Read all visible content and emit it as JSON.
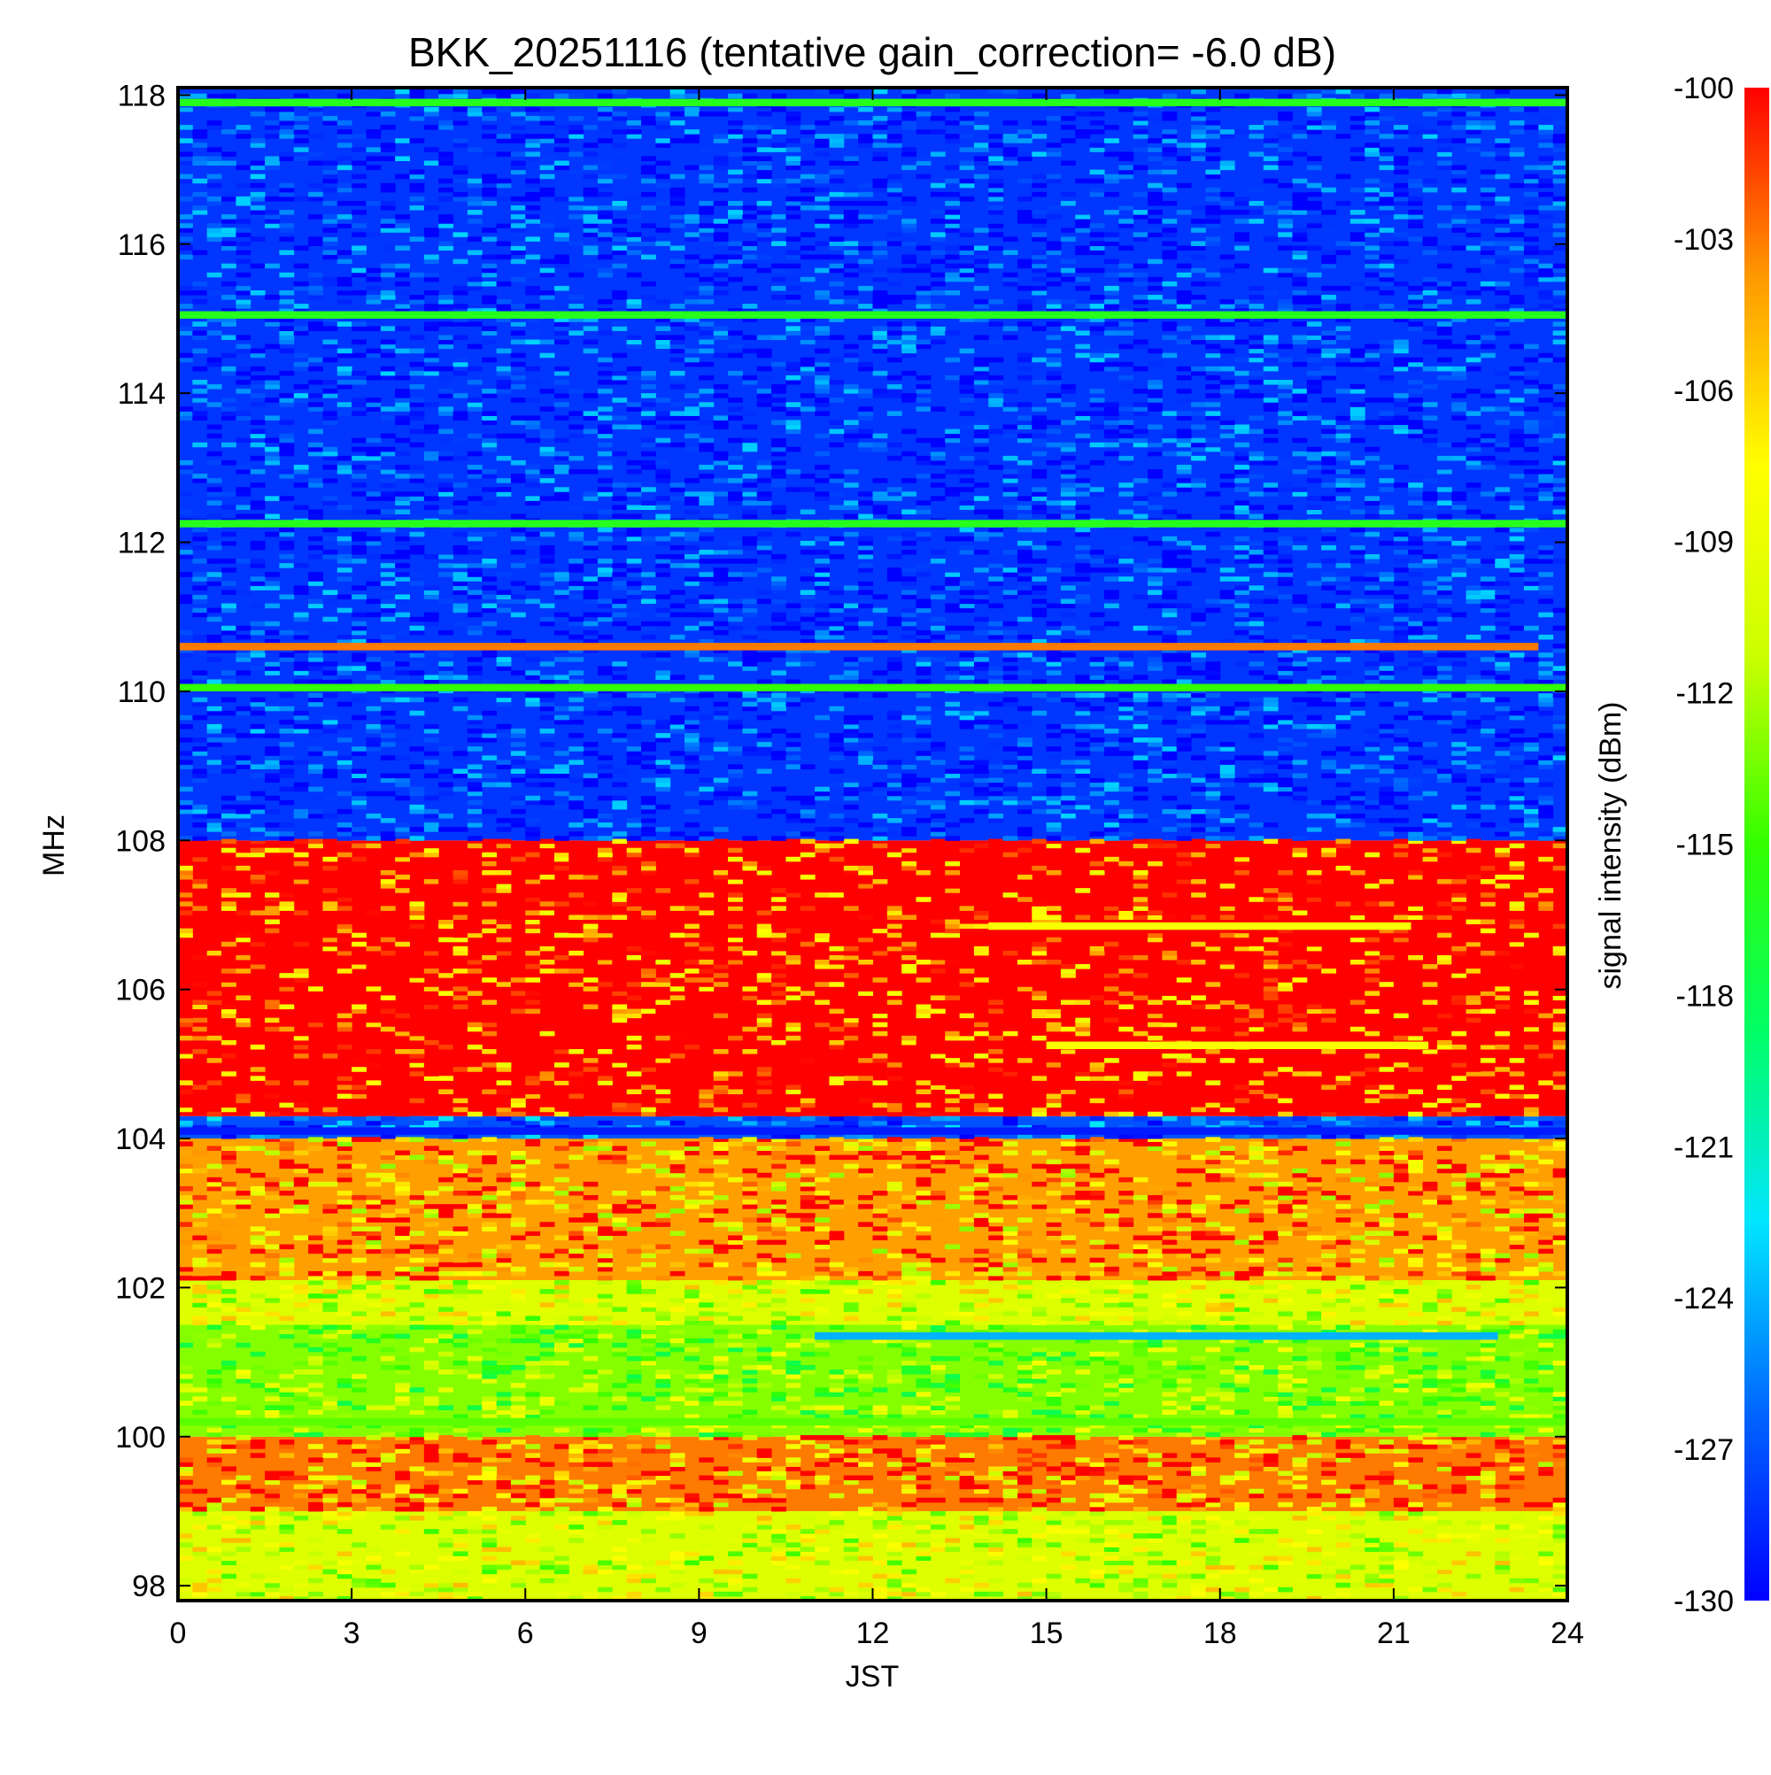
{
  "chart_data": {
    "type": "heatmap",
    "title": "BKK_20251116 (tentative gain_correction= -6.0 dB)",
    "xlabel": "JST",
    "ylabel": "MHz",
    "xlim": [
      0,
      24
    ],
    "ylim": [
      97.8,
      118.1
    ],
    "x_ticks": [
      "0",
      "3",
      "6",
      "9",
      "12",
      "15",
      "18",
      "21",
      "24"
    ],
    "x_tick_values": [
      0,
      3,
      6,
      9,
      12,
      15,
      18,
      21,
      24
    ],
    "y_ticks": [
      "98",
      "100",
      "102",
      "104",
      "106",
      "108",
      "110",
      "112",
      "114",
      "116",
      "118"
    ],
    "y_tick_values": [
      98,
      100,
      102,
      104,
      106,
      108,
      110,
      112,
      114,
      116,
      118
    ],
    "colorbar": {
      "label": "signal intensity (dBm)",
      "range": [
        -130,
        -100
      ],
      "ticks": [
        "-100",
        "-103",
        "-106",
        "-109",
        "-112",
        "-115",
        "-118",
        "-121",
        "-124",
        "-127",
        "-130"
      ],
      "tick_values": [
        -100,
        -103,
        -106,
        -109,
        -112,
        -115,
        -118,
        -121,
        -124,
        -127,
        -130
      ],
      "colormap": [
        "#0000ff",
        "#0066ff",
        "#00e5ff",
        "#00ff66",
        "#33ff00",
        "#ccff00",
        "#ffff00",
        "#ff9900",
        "#ff0000"
      ]
    },
    "regions": [
      {
        "f0": 97.8,
        "f1": 99.0,
        "t0": 0,
        "t1": 24,
        "level_dBm": -110
      },
      {
        "f0": 99.0,
        "f1": 100.0,
        "t0": 0,
        "t1": 24,
        "level_dBm": -103
      },
      {
        "f0": 100.0,
        "f1": 101.5,
        "t0": 0,
        "t1": 24,
        "level_dBm": -113
      },
      {
        "f0": 101.5,
        "f1": 102.1,
        "t0": 0,
        "t1": 24,
        "level_dBm": -110
      },
      {
        "f0": 102.1,
        "f1": 104.0,
        "t0": 0,
        "t1": 24,
        "level_dBm": -104
      },
      {
        "f0": 104.0,
        "f1": 104.3,
        "t0": 0,
        "t1": 24,
        "level_dBm": -127
      },
      {
        "f0": 104.3,
        "f1": 108.0,
        "t0": 0,
        "t1": 24,
        "level_dBm": -100
      },
      {
        "f0": 108.0,
        "f1": 118.1,
        "t0": 0,
        "t1": 24,
        "level_dBm": -128
      }
    ],
    "bands": [
      {
        "freq": 100.2,
        "t0": 0,
        "t1": 24,
        "level_dBm": -114
      },
      {
        "freq": 101.35,
        "t0": 11,
        "t1": 22.8,
        "level_dBm": -124
      },
      {
        "freq": 104.1,
        "t0": 0,
        "t1": 24,
        "level_dBm": -129
      },
      {
        "freq": 105.25,
        "t0": 15,
        "t1": 21.6,
        "level_dBm": -108
      },
      {
        "freq": 106.85,
        "t0": 14,
        "t1": 21.3,
        "level_dBm": -108
      },
      {
        "freq": 110.05,
        "t0": 0,
        "t1": 24,
        "level_dBm": -115
      },
      {
        "freq": 110.6,
        "t0": 0,
        "t1": 23.5,
        "level_dBm": -103
      },
      {
        "freq": 112.25,
        "t0": 0,
        "t1": 24,
        "level_dBm": -116
      },
      {
        "freq": 115.05,
        "t0": 0,
        "t1": 24,
        "level_dBm": -116
      },
      {
        "freq": 117.9,
        "t0": 0,
        "t1": 24,
        "level_dBm": -116
      }
    ]
  }
}
